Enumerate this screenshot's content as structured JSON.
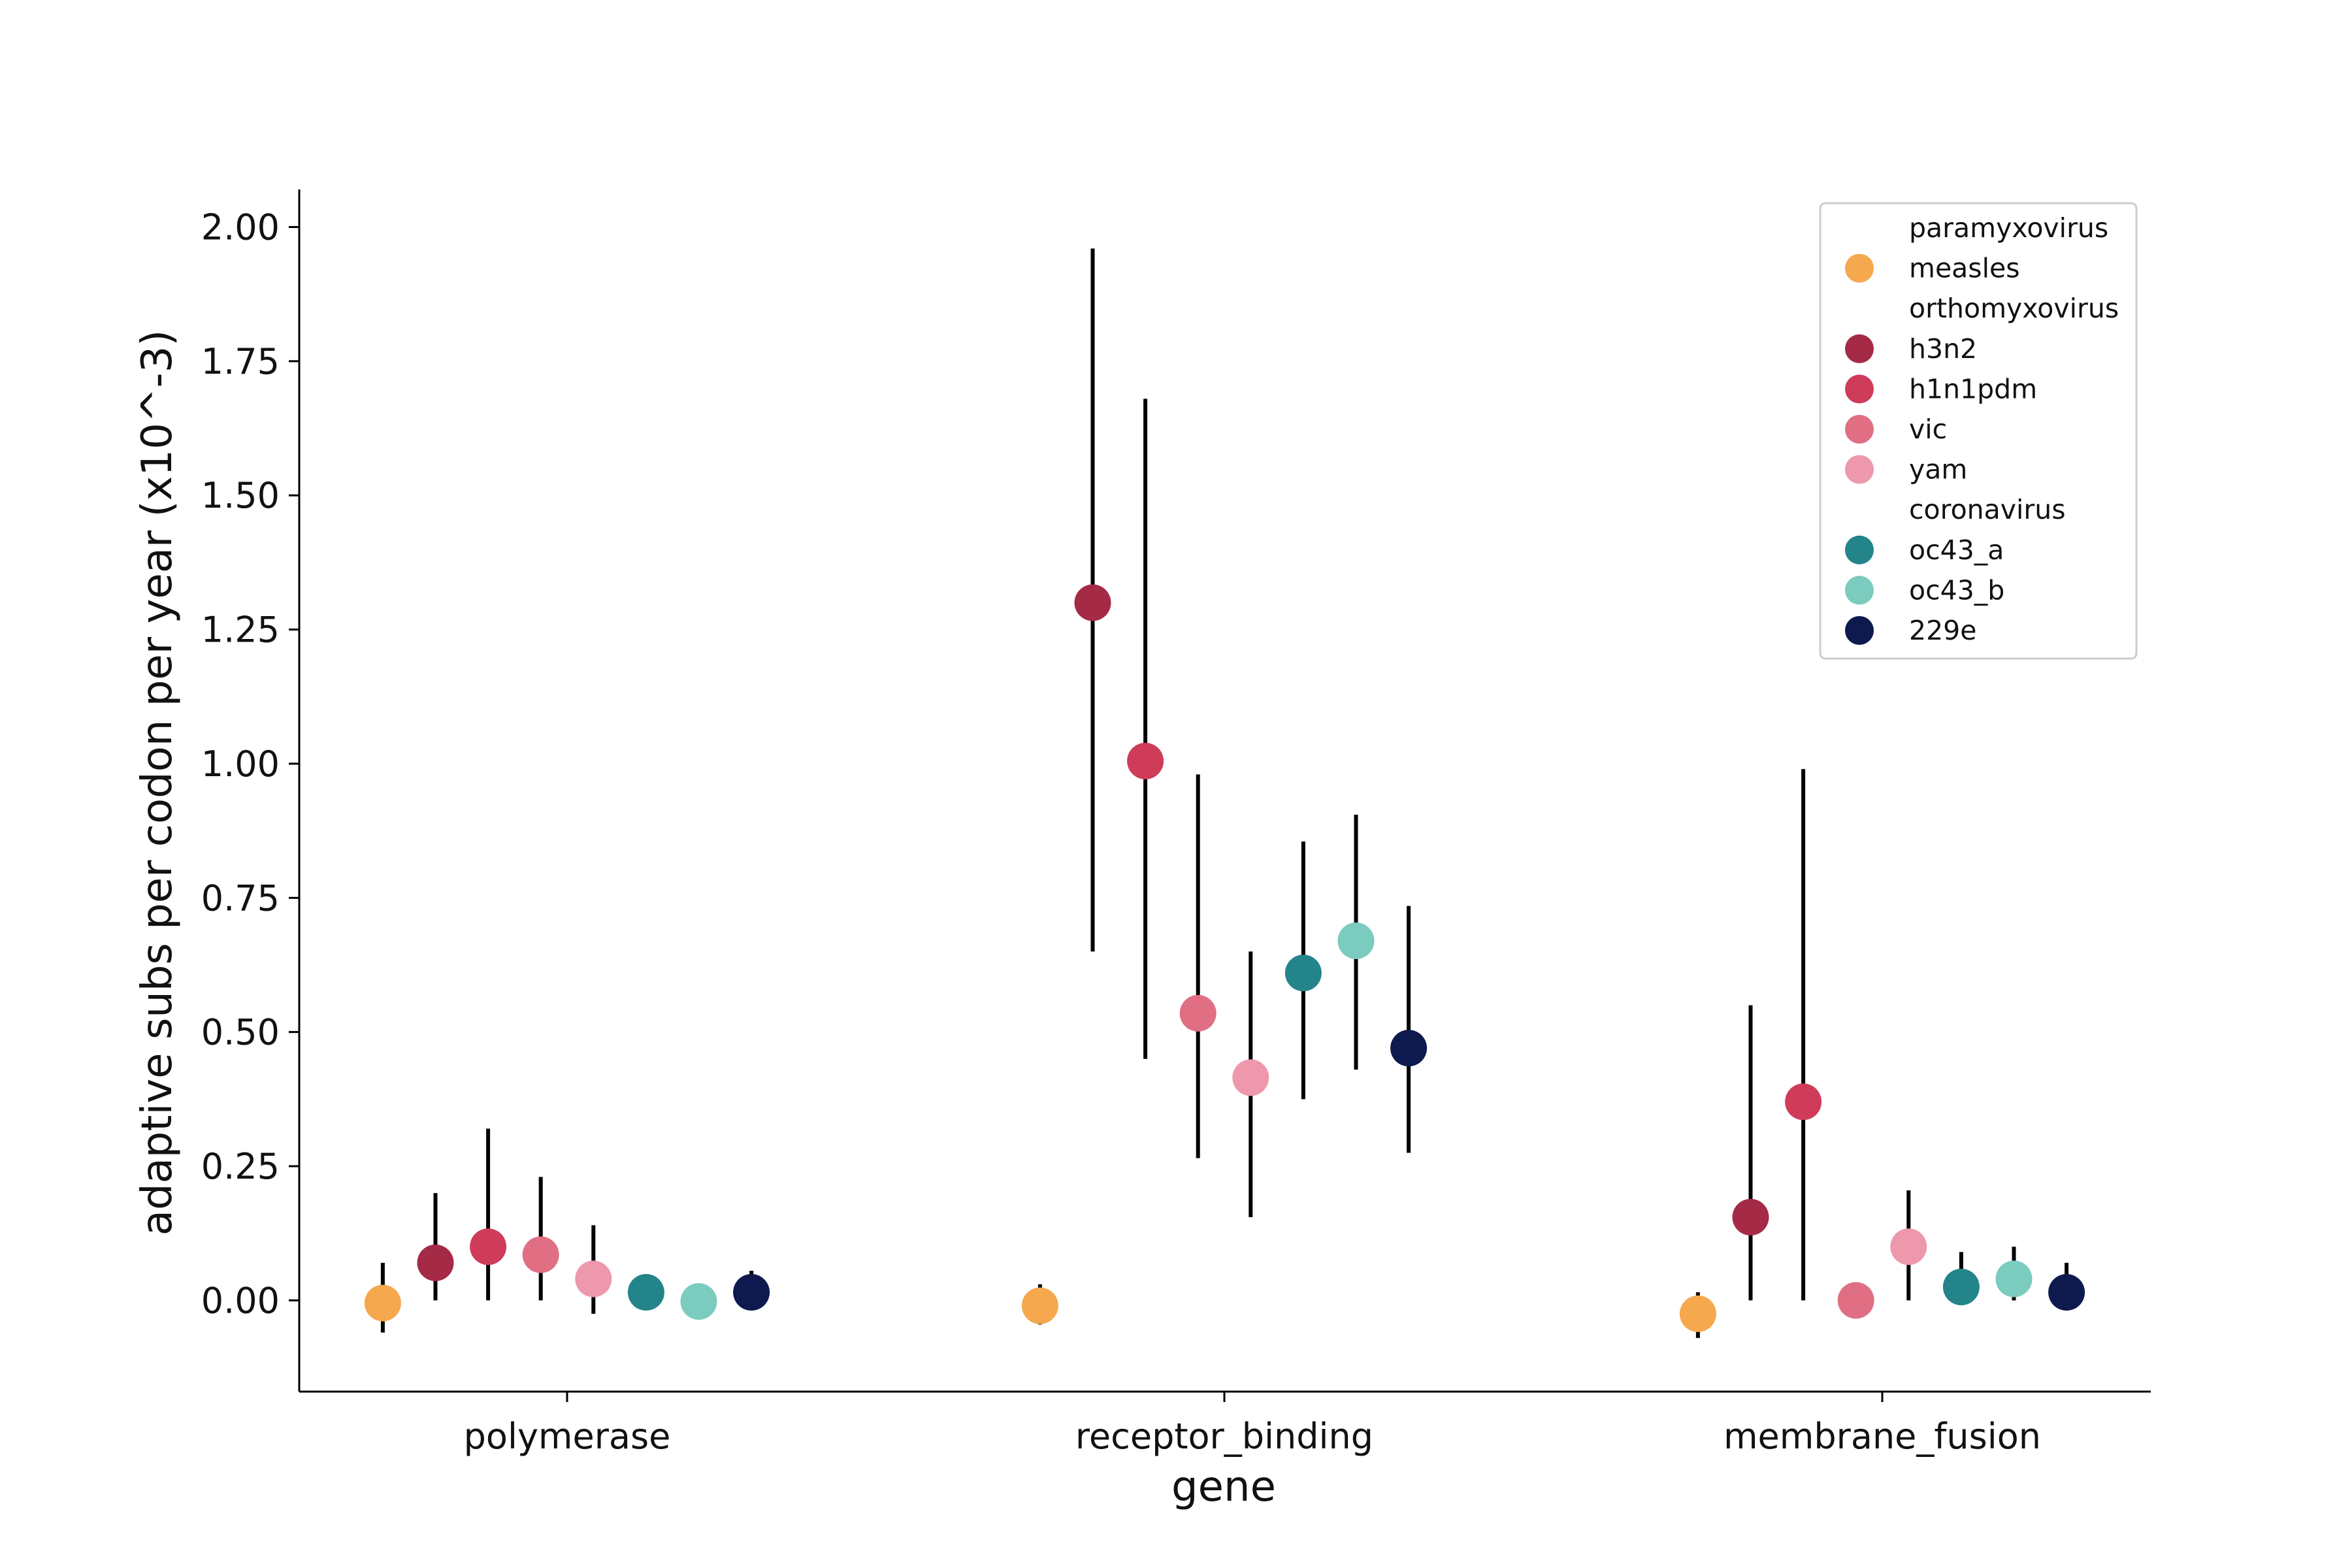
{
  "chart_data": {
    "type": "scatter",
    "xlabel": "gene",
    "ylabel": "adaptive subs per codon per year (x10^-3)",
    "ylim": [
      -0.17,
      2.07
    ],
    "yticks": [
      0.0,
      0.25,
      0.5,
      0.75,
      1.0,
      1.25,
      1.5,
      1.75,
      2.0
    ],
    "ytick_labels": [
      "0.00",
      "0.25",
      "0.50",
      "0.75",
      "1.00",
      "1.25",
      "1.50",
      "1.75",
      "2.00"
    ],
    "categories": [
      "polymerase",
      "receptor_binding",
      "membrane_fusion"
    ],
    "error_bars": true,
    "grid": false,
    "legend_position": "top-right",
    "legend_groups": [
      {
        "title": "paramyxovirus",
        "series": [
          "measles"
        ]
      },
      {
        "title": "orthomyxovirus",
        "series": [
          "h3n2",
          "h1n1pdm",
          "vic",
          "yam"
        ]
      },
      {
        "title": "coronavirus",
        "series": [
          "oc43_a",
          "oc43_b",
          "229e"
        ]
      }
    ],
    "series": [
      {
        "name": "measles",
        "color": "#F5A84E",
        "values": [
          -0.005,
          -0.01,
          -0.025
        ],
        "error_low": [
          -0.06,
          -0.045,
          -0.07
        ],
        "error_high": [
          0.07,
          0.03,
          0.015
        ]
      },
      {
        "name": "h3n2",
        "color": "#A52A46",
        "values": [
          0.07,
          1.3,
          0.155
        ],
        "error_low": [
          0.0,
          0.65,
          0.0
        ],
        "error_high": [
          0.2,
          1.96,
          0.55
        ]
      },
      {
        "name": "h1n1pdm",
        "color": "#CE3C5A",
        "values": [
          0.1,
          1.005,
          0.37
        ],
        "error_low": [
          0.0,
          0.45,
          0.0
        ],
        "error_high": [
          0.32,
          1.68,
          0.99
        ]
      },
      {
        "name": "vic",
        "color": "#E06F83",
        "values": [
          0.085,
          0.535,
          0.0
        ],
        "error_low": [
          0.0,
          0.265,
          0.0
        ],
        "error_high": [
          0.23,
          0.98,
          0.0
        ]
      },
      {
        "name": "yam",
        "color": "#EE98AD",
        "values": [
          0.04,
          0.415,
          0.1
        ],
        "error_low": [
          -0.025,
          0.155,
          0.0
        ],
        "error_high": [
          0.14,
          0.65,
          0.205
        ]
      },
      {
        "name": "oc43_a",
        "color": "#23848A",
        "values": [
          0.015,
          0.61,
          0.025
        ],
        "error_low": [
          0.015,
          0.375,
          0.0
        ],
        "error_high": [
          0.015,
          0.855,
          0.09
        ]
      },
      {
        "name": "oc43_b",
        "color": "#7BCBBF",
        "values": [
          -0.002,
          0.67,
          0.04
        ],
        "error_low": [
          -0.002,
          0.43,
          0.0
        ],
        "error_high": [
          -0.002,
          0.905,
          0.1
        ]
      },
      {
        "name": "229e",
        "color": "#0E1A4D",
        "values": [
          0.015,
          0.47,
          0.015
        ],
        "error_low": [
          0.0,
          0.275,
          0.0
        ],
        "error_high": [
          0.055,
          0.735,
          0.07
        ]
      }
    ]
  }
}
